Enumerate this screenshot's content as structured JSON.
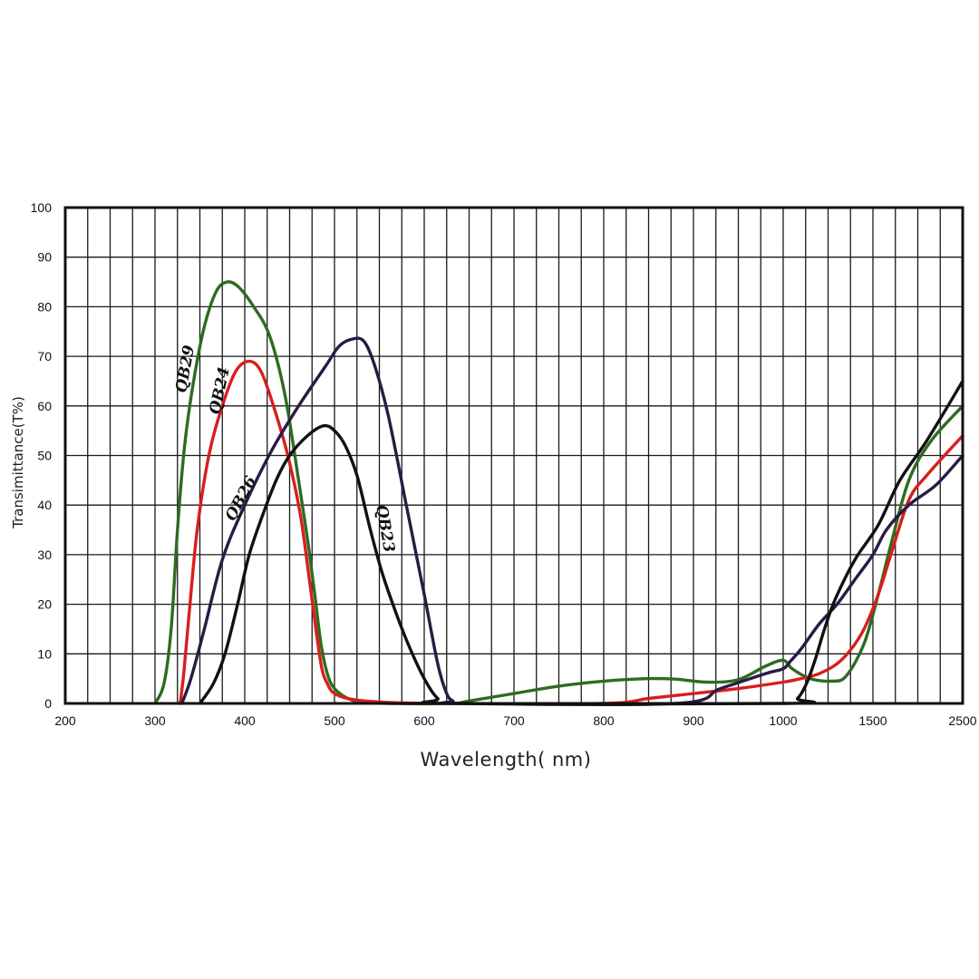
{
  "chart_data": {
    "type": "line",
    "xlabel": "Wavelength( nm)",
    "ylabel": "Transimittance(T%)",
    "ylim": [
      0,
      100
    ],
    "x_tick_labels": [
      "200",
      "300",
      "400",
      "500",
      "600",
      "700",
      "800",
      "900",
      "1000",
      "1500",
      "2500"
    ],
    "y_ticks": [
      0,
      10,
      20,
      30,
      40,
      50,
      60,
      70,
      80,
      90,
      100
    ],
    "grid": true,
    "series": [
      {
        "name": "QB29",
        "color": "#2e6b1f",
        "points": [
          [
            300,
            0
          ],
          [
            310,
            4
          ],
          [
            318,
            15
          ],
          [
            325,
            35
          ],
          [
            333,
            52
          ],
          [
            343,
            65
          ],
          [
            355,
            76
          ],
          [
            368,
            83
          ],
          [
            380,
            85
          ],
          [
            393,
            84
          ],
          [
            410,
            80
          ],
          [
            428,
            74
          ],
          [
            445,
            62
          ],
          [
            460,
            45
          ],
          [
            470,
            33
          ],
          [
            478,
            22
          ],
          [
            485,
            12
          ],
          [
            492,
            6
          ],
          [
            500,
            3
          ],
          [
            515,
            1
          ],
          [
            530,
            0.3
          ],
          [
            560,
            0
          ],
          [
            630,
            0
          ],
          [
            650,
            0.5
          ],
          [
            700,
            2
          ],
          [
            750,
            3.5
          ],
          [
            800,
            4.5
          ],
          [
            850,
            5
          ],
          [
            880,
            4.9
          ],
          [
            915,
            4.3
          ],
          [
            950,
            4.8
          ],
          [
            980,
            7.5
          ],
          [
            1000,
            8.7
          ],
          [
            1050,
            7
          ],
          [
            1150,
            5
          ],
          [
            1270,
            4.5
          ],
          [
            1350,
            5.5
          ],
          [
            1450,
            12
          ],
          [
            1560,
            22
          ],
          [
            1700,
            32
          ],
          [
            1900,
            45
          ],
          [
            2150,
            53
          ],
          [
            2500,
            60
          ]
        ]
      },
      {
        "name": "QB24",
        "color": "#d81e1e",
        "points": [
          [
            328,
            0
          ],
          [
            332,
            6
          ],
          [
            338,
            18
          ],
          [
            347,
            35
          ],
          [
            360,
            50
          ],
          [
            375,
            60
          ],
          [
            390,
            67
          ],
          [
            405,
            69
          ],
          [
            418,
            67
          ],
          [
            432,
            60
          ],
          [
            448,
            50
          ],
          [
            462,
            38
          ],
          [
            472,
            25
          ],
          [
            480,
            14
          ],
          [
            486,
            7
          ],
          [
            492,
            4
          ],
          [
            500,
            2
          ],
          [
            520,
            0.8
          ],
          [
            560,
            0.2
          ],
          [
            620,
            0
          ],
          [
            800,
            0
          ],
          [
            850,
            1
          ],
          [
            900,
            2
          ],
          [
            950,
            3
          ],
          [
            1000,
            4.3
          ],
          [
            1100,
            5
          ],
          [
            1200,
            6
          ],
          [
            1300,
            8
          ],
          [
            1380,
            11
          ],
          [
            1450,
            15
          ],
          [
            1560,
            22
          ],
          [
            1700,
            30
          ],
          [
            1900,
            41
          ],
          [
            2100,
            46
          ],
          [
            2500,
            54
          ]
        ]
      },
      {
        "name": "QB26",
        "color": "#2a1a45",
        "points": [
          [
            330,
            0
          ],
          [
            340,
            5
          ],
          [
            355,
            15
          ],
          [
            375,
            29
          ],
          [
            400,
            40
          ],
          [
            430,
            51
          ],
          [
            460,
            60
          ],
          [
            490,
            68
          ],
          [
            505,
            72
          ],
          [
            520,
            73.5
          ],
          [
            533,
            73
          ],
          [
            545,
            68
          ],
          [
            560,
            58
          ],
          [
            580,
            40
          ],
          [
            600,
            22
          ],
          [
            615,
            8
          ],
          [
            625,
            2
          ],
          [
            632,
            0.5
          ],
          [
            640,
            0
          ],
          [
            880,
            0
          ],
          [
            930,
            3
          ],
          [
            980,
            6
          ],
          [
            1000,
            7
          ],
          [
            1040,
            8.5
          ],
          [
            1100,
            11
          ],
          [
            1200,
            16
          ],
          [
            1300,
            20
          ],
          [
            1400,
            25
          ],
          [
            1500,
            30
          ],
          [
            1650,
            35
          ],
          [
            1900,
            40
          ],
          [
            2200,
            44
          ],
          [
            2500,
            50
          ]
        ]
      },
      {
        "name": "QB23",
        "color": "#111111",
        "points": [
          [
            350,
            0
          ],
          [
            365,
            4
          ],
          [
            378,
            10
          ],
          [
            392,
            20
          ],
          [
            405,
            30
          ],
          [
            420,
            38
          ],
          [
            435,
            45
          ],
          [
            450,
            50
          ],
          [
            470,
            54
          ],
          [
            488,
            56
          ],
          [
            500,
            55
          ],
          [
            512,
            52
          ],
          [
            525,
            46
          ],
          [
            540,
            35
          ],
          [
            552,
            27
          ],
          [
            565,
            20
          ],
          [
            582,
            12
          ],
          [
            600,
            5
          ],
          [
            615,
            1
          ],
          [
            630,
            0
          ],
          [
            1020,
            0
          ],
          [
            1080,
            1
          ],
          [
            1130,
            4
          ],
          [
            1180,
            9
          ],
          [
            1230,
            15
          ],
          [
            1290,
            21
          ],
          [
            1400,
            29
          ],
          [
            1560,
            36
          ],
          [
            1800,
            45
          ],
          [
            2100,
            53
          ],
          [
            2500,
            65
          ]
        ]
      }
    ]
  }
}
